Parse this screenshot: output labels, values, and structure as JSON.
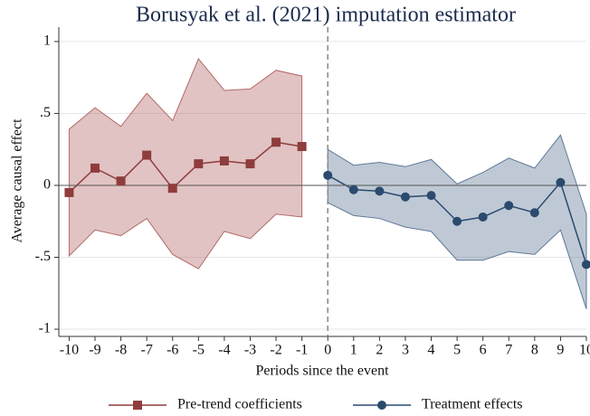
{
  "chart_data": {
    "type": "line",
    "title": "Borusyak et al. (2021) imputation estimator",
    "x_label": "Periods since the event",
    "y_label": "Average causal effect",
    "xlim": [
      -10.4,
      10
    ],
    "ylim": [
      -1.05,
      1.1
    ],
    "xticks": [
      -10,
      -9,
      -8,
      -7,
      -6,
      -5,
      -4,
      -3,
      -2,
      -1,
      0,
      1,
      2,
      3,
      4,
      5,
      6,
      7,
      8,
      9,
      10
    ],
    "yticks": [
      -1,
      {
        "value": -0.5,
        "label": "-.5"
      },
      0,
      {
        "value": 0.5,
        "label": ".5"
      },
      1
    ],
    "grid": true,
    "hline": 0,
    "vline": 0,
    "series": [
      {
        "name": "Pre-trend coefficients",
        "color": "#8f3c3c",
        "band_color": "#b46a6a",
        "marker": "square",
        "x": [
          -10,
          -9,
          -8,
          -7,
          -6,
          -5,
          -4,
          -3,
          -2,
          -1
        ],
        "values": [
          -0.05,
          0.12,
          0.03,
          0.21,
          -0.02,
          0.15,
          0.17,
          0.15,
          0.3,
          0.27
        ],
        "upper": [
          0.39,
          0.54,
          0.41,
          0.64,
          0.45,
          0.88,
          0.66,
          0.67,
          0.8,
          0.76
        ],
        "lower": [
          -0.49,
          -0.31,
          -0.35,
          -0.23,
          -0.48,
          -0.58,
          -0.32,
          -0.37,
          -0.2,
          -0.22
        ]
      },
      {
        "name": "Treatment effects",
        "color": "#2a4a6e",
        "band_color": "#5f7896",
        "marker": "circle",
        "x": [
          0,
          1,
          2,
          3,
          4,
          5,
          6,
          7,
          8,
          9,
          10
        ],
        "values": [
          0.07,
          -0.03,
          -0.04,
          -0.08,
          -0.07,
          -0.25,
          -0.22,
          -0.14,
          -0.19,
          0.02,
          -0.55
        ],
        "upper": [
          0.25,
          0.14,
          0.16,
          0.13,
          0.18,
          0.01,
          0.09,
          0.19,
          0.12,
          0.35,
          -0.2
        ],
        "lower": [
          -0.12,
          -0.21,
          -0.23,
          -0.29,
          -0.32,
          -0.52,
          -0.52,
          -0.46,
          -0.48,
          -0.31,
          -0.86
        ]
      }
    ]
  }
}
